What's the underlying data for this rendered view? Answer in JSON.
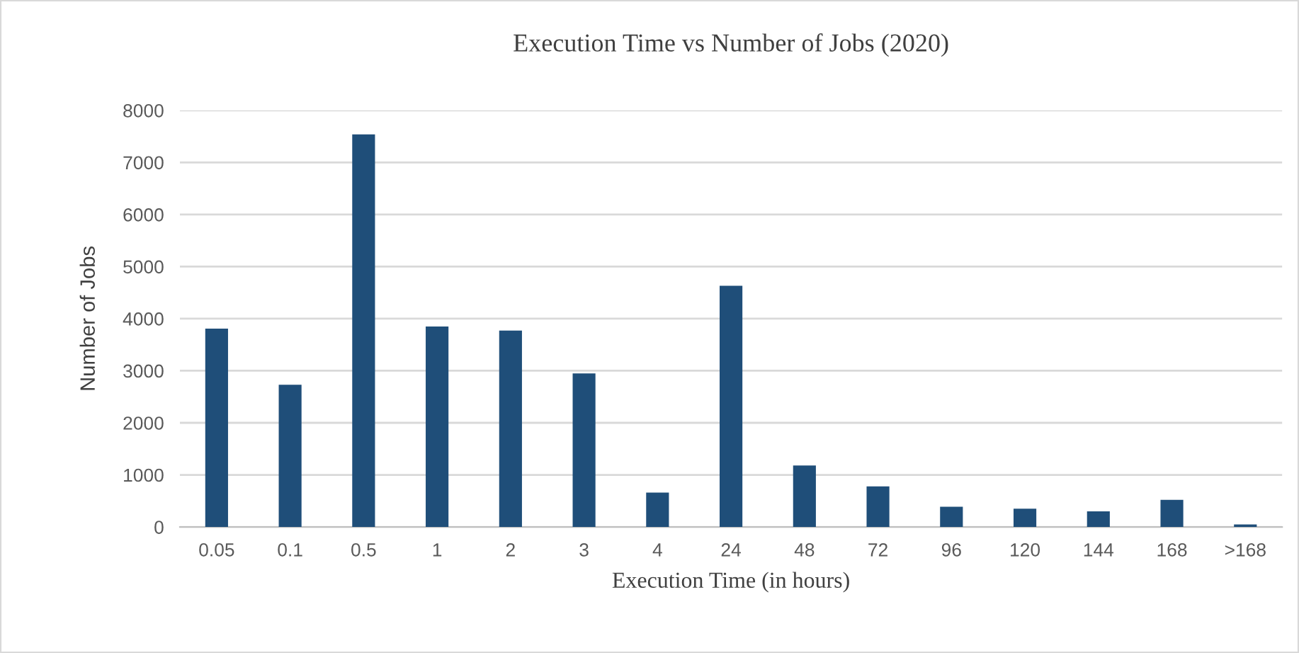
{
  "chart_data": {
    "type": "bar",
    "title": "Execution Time vs Number of Jobs (2020)",
    "xlabel": "Execution Time (in hours)",
    "ylabel": "Number of Jobs",
    "categories": [
      "0.05",
      "0.1",
      "0.5",
      "1",
      "2",
      "3",
      "4",
      "24",
      "48",
      "72",
      "96",
      "120",
      "144",
      "168",
      ">168"
    ],
    "values": [
      3810,
      2730,
      7540,
      3850,
      3770,
      2950,
      660,
      4630,
      1180,
      780,
      390,
      350,
      300,
      520,
      50
    ],
    "color": "#1f4e79",
    "ylim": [
      0,
      8000
    ],
    "yticks": [
      0,
      1000,
      2000,
      3000,
      4000,
      5000,
      6000,
      7000,
      8000
    ],
    "grid": "y"
  }
}
